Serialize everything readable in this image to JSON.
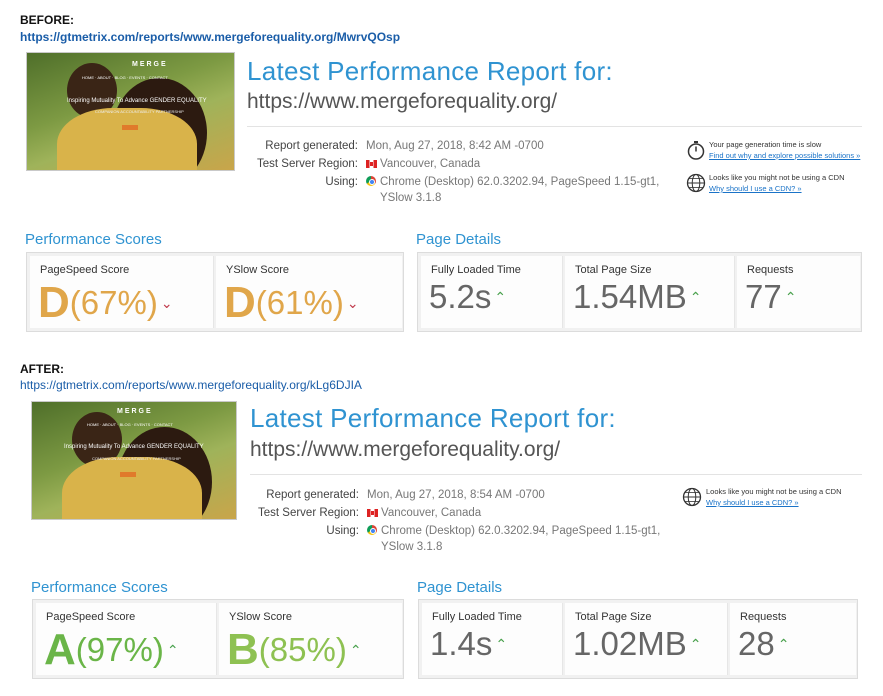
{
  "before": {
    "tag": "BEFORE:",
    "report_url": "https://gtmetrix.com/reports/www.mergeforequality.org/MwrvQOsp",
    "thumb": {
      "logo": "MERGE",
      "headline": "Inspiring Mutuality To Advance GENDER EQUALITY",
      "sub": "COMPANION ACCOUNTABILITY PARTNERSHIP"
    },
    "title": "Latest Performance Report for:",
    "domain": "https://www.mergeforequality.org/",
    "report_generated_label": "Report generated:",
    "report_generated_value": "Mon, Aug 27, 2018, 8:42 AM -0700",
    "server_label": "Test Server Region:",
    "server_value": "Vancouver, Canada",
    "using_label": "Using:",
    "using_value_line1": "Chrome (Desktop) 62.0.3202.94, PageSpeed 1.15-gt1,",
    "using_value_line2": "YSlow 3.1.8",
    "hint1_text": "Your page generation time is slow",
    "hint1_link": "Find out why and explore possible solutions »",
    "hint2_text": "Looks like you might not be using a CDN",
    "hint2_link": "Why should I use a CDN? »",
    "perf_title": "Performance Scores",
    "pagespeed_label": "PageSpeed Score",
    "pagespeed_grade": "D",
    "pagespeed_pct": "(67%)",
    "yslow_label": "YSlow Score",
    "yslow_grade": "D",
    "yslow_pct": "(61%)",
    "details_title": "Page Details",
    "load_label": "Fully Loaded Time",
    "load_value": "5.2s",
    "size_label": "Total Page Size",
    "size_value": "1.54MB",
    "req_label": "Requests",
    "req_value": "77"
  },
  "after": {
    "tag": "AFTER:",
    "report_url": "https://gtmetrix.com/reports/www.mergeforequality.org/kLg6DJIA",
    "thumb": {
      "logo": "MERGE",
      "headline": "Inspiring Mutuality To Advance GENDER EQUALITY",
      "sub": "COMPANION ACCOUNTABILITY PARTNERSHIP"
    },
    "title": "Latest Performance Report for:",
    "domain": "https://www.mergeforequality.org/",
    "report_generated_label": "Report generated:",
    "report_generated_value": "Mon, Aug 27, 2018, 8:54 AM -0700",
    "server_label": "Test Server Region:",
    "server_value": "Vancouver, Canada",
    "using_label": "Using:",
    "using_value_line1": "Chrome (Desktop) 62.0.3202.94, PageSpeed 1.15-gt1,",
    "using_value_line2": "YSlow 3.1.8",
    "hint2_text": "Looks like you might not be using a CDN",
    "hint2_link": "Why should I use a CDN? »",
    "perf_title": "Performance Scores",
    "pagespeed_label": "PageSpeed Score",
    "pagespeed_grade": "A",
    "pagespeed_pct": "(97%)",
    "yslow_label": "YSlow Score",
    "yslow_grade": "B",
    "yslow_pct": "(85%)",
    "details_title": "Page Details",
    "load_label": "Fully Loaded Time",
    "load_value": "1.4s",
    "size_label": "Total Page Size",
    "size_value": "1.02MB",
    "req_label": "Requests",
    "req_value": "28"
  },
  "colors": {
    "title_blue": "#2f93d1",
    "grade_d": "#e0a64a",
    "grade_a": "#6ab548",
    "grade_b": "#8ec152",
    "trend_up": "#47a04b",
    "trend_down": "#c0394b"
  }
}
